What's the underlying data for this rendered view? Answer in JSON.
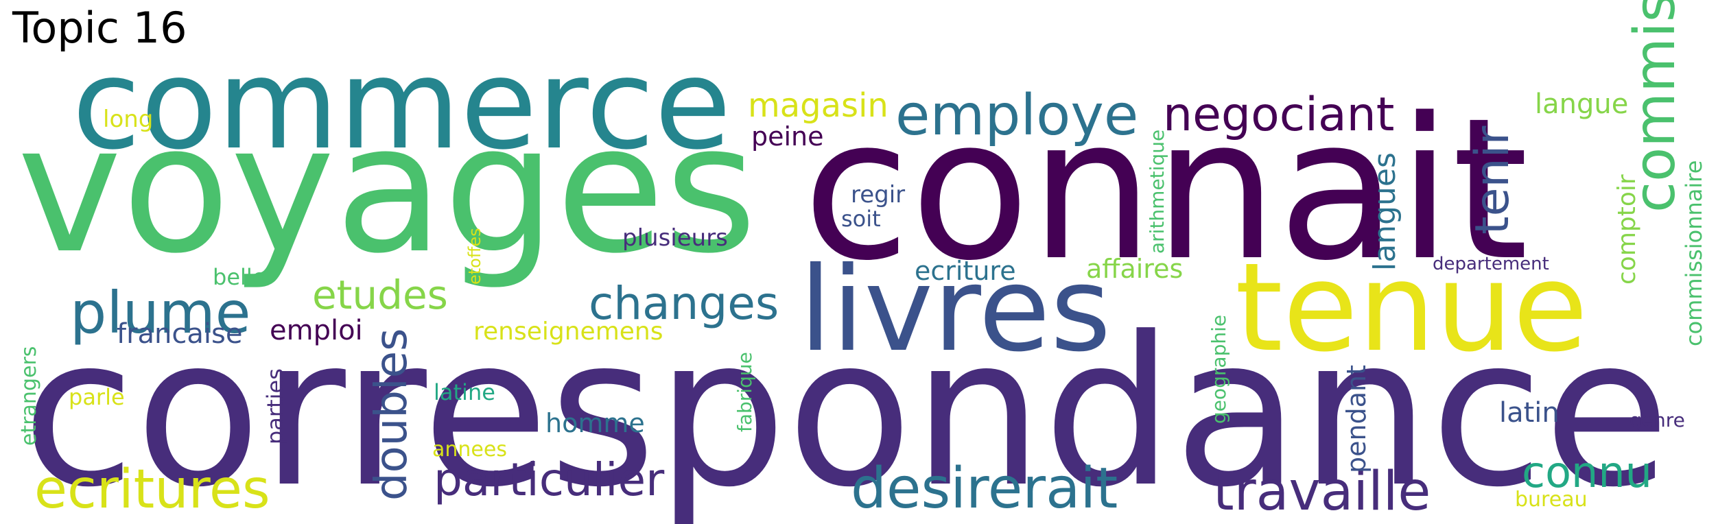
{
  "title": "Topic 16",
  "words": [
    {
      "text": "correspondance",
      "color": "#472d7b"
    },
    {
      "text": "connait",
      "color": "#440154"
    },
    {
      "text": "voyages",
      "color": "#4ac16d"
    },
    {
      "text": "commerce",
      "color": "#25858e"
    },
    {
      "text": "tenue",
      "color": "#e8e419"
    },
    {
      "text": "livres",
      "color": "#3b528b"
    },
    {
      "text": "employe",
      "color": "#2c728e"
    },
    {
      "text": "negociant",
      "color": "#440154"
    },
    {
      "text": "commis",
      "color": "#4ac16d"
    },
    {
      "text": "tenir",
      "color": "#3b528b"
    },
    {
      "text": "plume",
      "color": "#2c728e"
    },
    {
      "text": "changes",
      "color": "#2c728e"
    },
    {
      "text": "etudes",
      "color": "#86d549"
    },
    {
      "text": "doubles",
      "color": "#3b528b"
    },
    {
      "text": "ecritures",
      "color": "#d8e219"
    },
    {
      "text": "particulier",
      "color": "#472d7b"
    },
    {
      "text": "desirerait",
      "color": "#2c728e"
    },
    {
      "text": "travaille",
      "color": "#472d7b"
    },
    {
      "text": "connu",
      "color": "#22a884"
    },
    {
      "text": "magasin",
      "color": "#d8e219"
    },
    {
      "text": "peine",
      "color": "#440154"
    },
    {
      "text": "langue",
      "color": "#86d549"
    },
    {
      "text": "langues",
      "color": "#2c728e"
    },
    {
      "text": "comptoir",
      "color": "#86d549"
    },
    {
      "text": "commissionnaire",
      "color": "#4ac16d"
    },
    {
      "text": "arithmetique",
      "color": "#4ac16d"
    },
    {
      "text": "regir",
      "color": "#3b528b"
    },
    {
      "text": "soit",
      "color": "#3b528b"
    },
    {
      "text": "plusieurs",
      "color": "#472d7b"
    },
    {
      "text": "ecriture",
      "color": "#2c728e"
    },
    {
      "text": "affaires",
      "color": "#86d549"
    },
    {
      "text": "departement",
      "color": "#472d7b"
    },
    {
      "text": "long",
      "color": "#d8e219"
    },
    {
      "text": "belle",
      "color": "#4ac16d"
    },
    {
      "text": "etoffes",
      "color": "#d8e219"
    },
    {
      "text": "francaise",
      "color": "#3b528b"
    },
    {
      "text": "emploi",
      "color": "#440154"
    },
    {
      "text": "renseignemens",
      "color": "#d8e219"
    },
    {
      "text": "fabrique",
      "color": "#4ac16d"
    },
    {
      "text": "geographie",
      "color": "#4ac16d"
    },
    {
      "text": "etrangers",
      "color": "#4ac16d"
    },
    {
      "text": "parle",
      "color": "#d8e219"
    },
    {
      "text": "parties",
      "color": "#472d7b"
    },
    {
      "text": "latine",
      "color": "#22a884"
    },
    {
      "text": "homme",
      "color": "#2c728e"
    },
    {
      "text": "annees",
      "color": "#d8e219"
    },
    {
      "text": "pendant",
      "color": "#3b528b"
    },
    {
      "text": "latin",
      "color": "#3b528b"
    },
    {
      "text": "genre",
      "color": "#472d7b"
    },
    {
      "text": "bureau",
      "color": "#d8e219"
    }
  ]
}
